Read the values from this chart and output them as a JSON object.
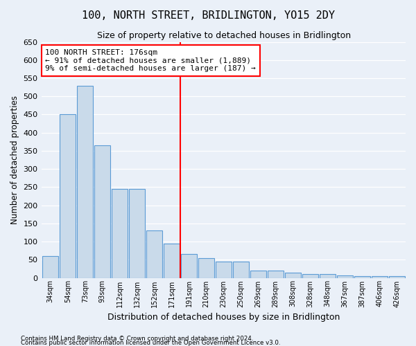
{
  "title": "100, NORTH STREET, BRIDLINGTON, YO15 2DY",
  "subtitle": "Size of property relative to detached houses in Bridlington",
  "xlabel": "Distribution of detached houses by size in Bridlington",
  "ylabel": "Number of detached properties",
  "categories": [
    "34sqm",
    "54sqm",
    "73sqm",
    "93sqm",
    "112sqm",
    "132sqm",
    "152sqm",
    "171sqm",
    "191sqm",
    "210sqm",
    "230sqm",
    "250sqm",
    "269sqm",
    "289sqm",
    "308sqm",
    "328sqm",
    "348sqm",
    "367sqm",
    "387sqm",
    "406sqm",
    "426sqm"
  ],
  "values": [
    60,
    450,
    530,
    365,
    245,
    245,
    130,
    95,
    65,
    55,
    45,
    45,
    20,
    20,
    15,
    10,
    10,
    7,
    5,
    5,
    5
  ],
  "bar_color": "#c9daea",
  "bar_edge_color": "#5b9bd5",
  "background_color": "#eaf0f8",
  "property_bin_index": 7,
  "annotation_line1": "100 NORTH STREET: 176sqm",
  "annotation_line2": "← 91% of detached houses are smaller (1,889)",
  "annotation_line3": "9% of semi-detached houses are larger (187) →",
  "annotation_box_color": "white",
  "annotation_box_edge": "red",
  "red_line_color": "red",
  "footer1": "Contains HM Land Registry data © Crown copyright and database right 2024.",
  "footer2": "Contains public sector information licensed under the Open Government Licence v3.0.",
  "ylim": [
    0,
    650
  ],
  "yticks": [
    0,
    50,
    100,
    150,
    200,
    250,
    300,
    350,
    400,
    450,
    500,
    550,
    600,
    650
  ]
}
